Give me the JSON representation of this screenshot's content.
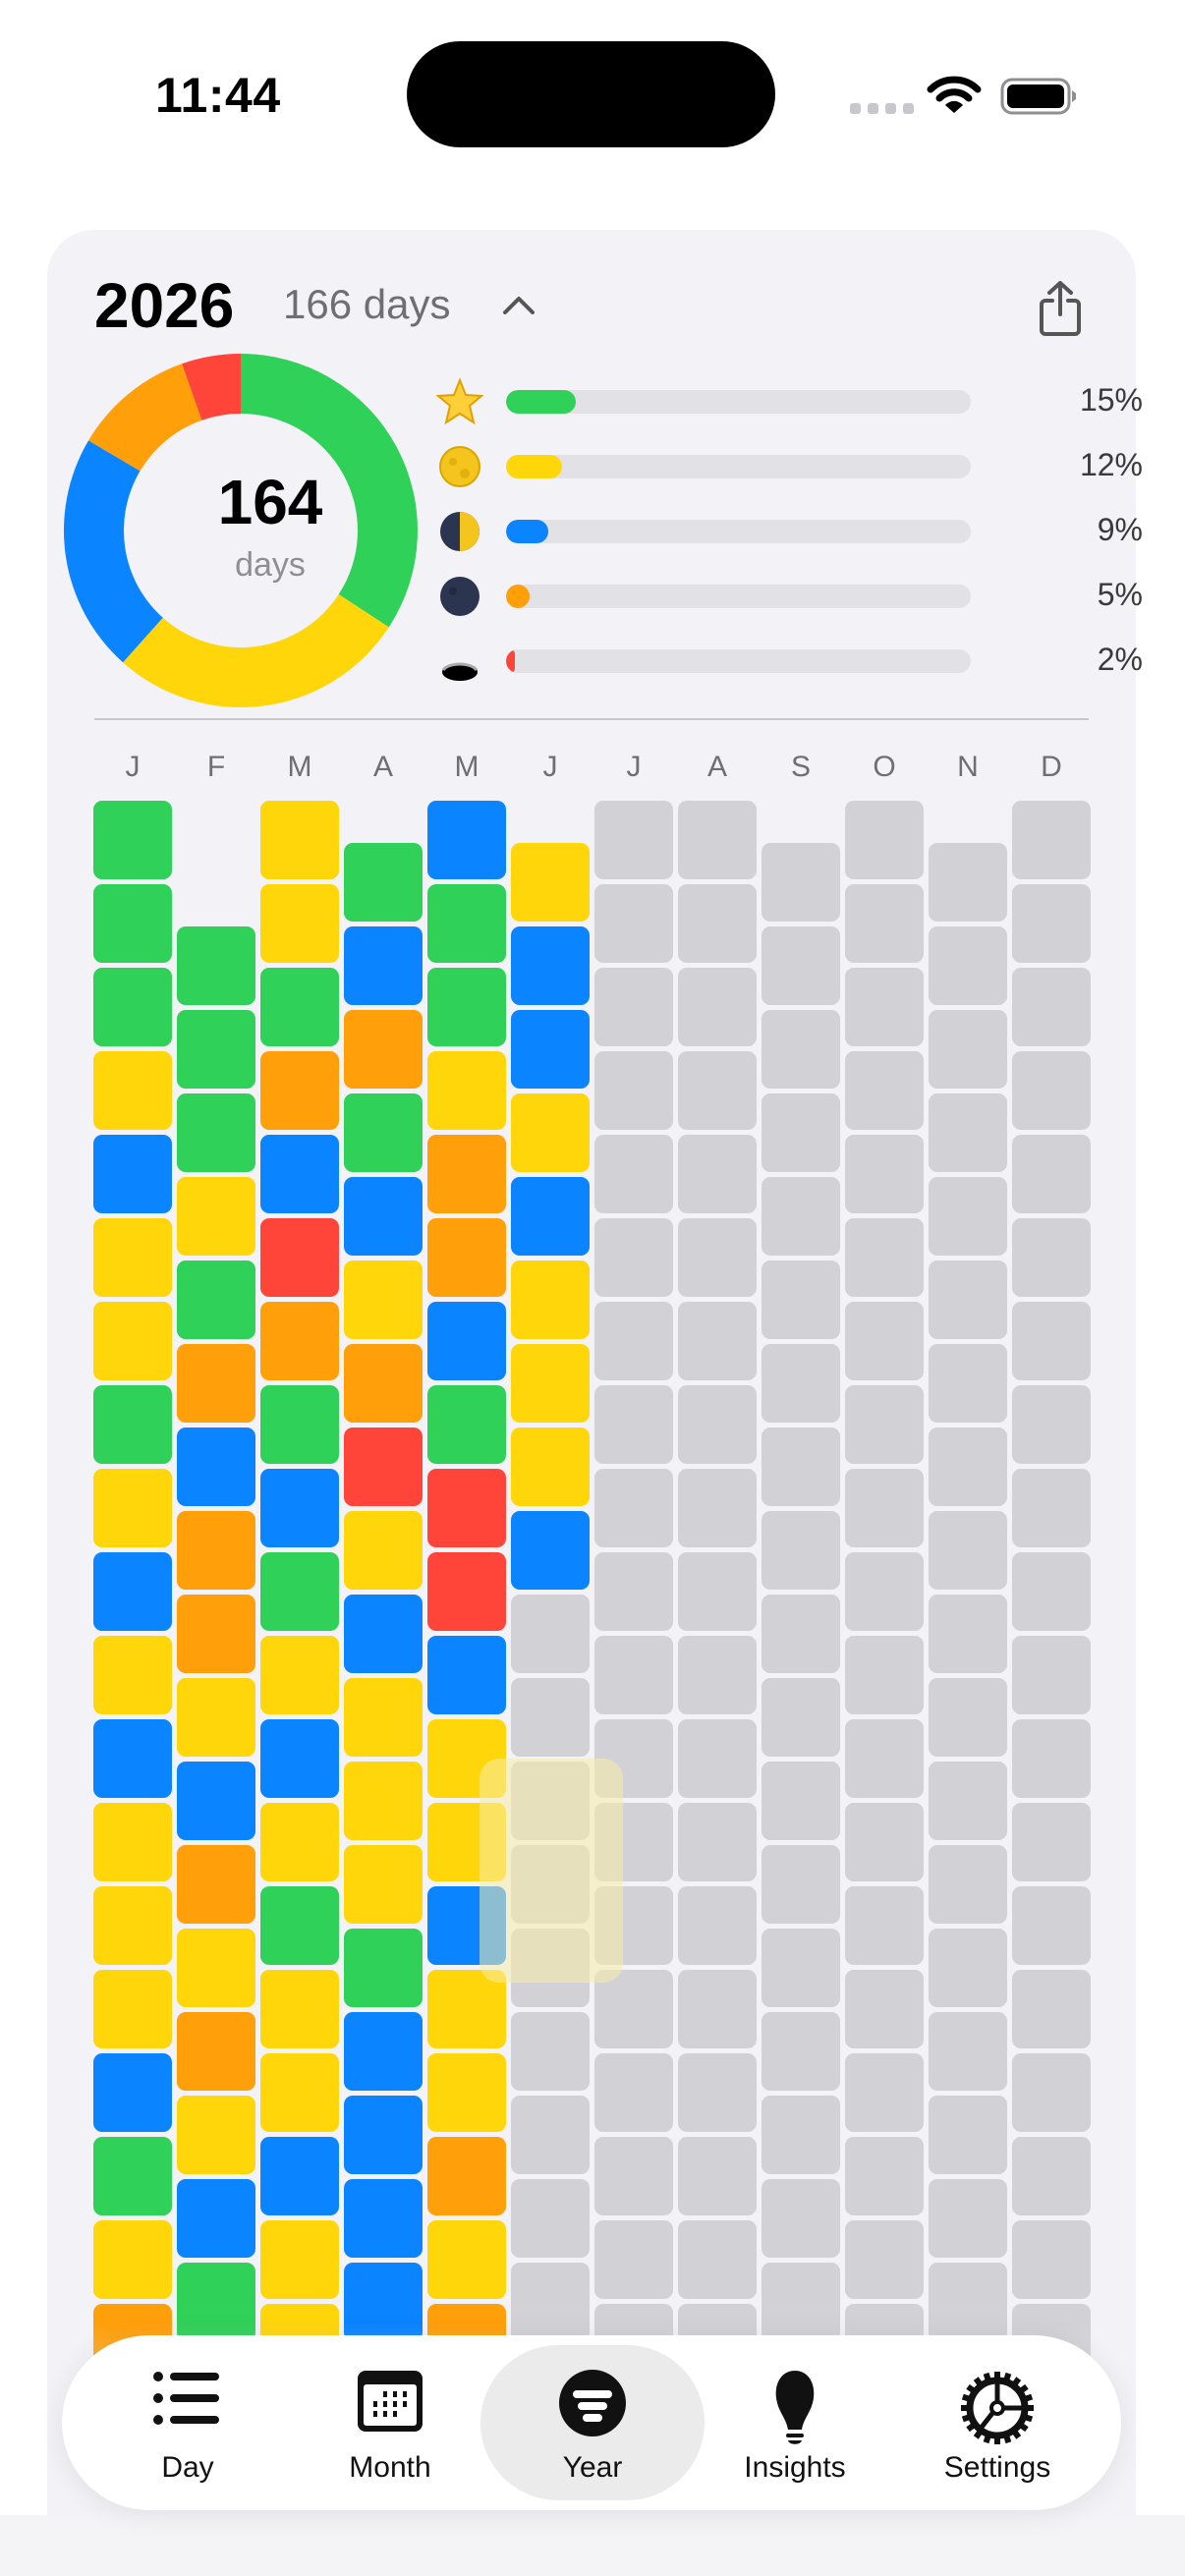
{
  "status_bar": {
    "time": "11:44",
    "signal": "no-service-dots",
    "wifi": "wifi-full",
    "battery": "battery-full"
  },
  "header": {
    "year": "2026",
    "days_label": "166 days",
    "collapse_icon": "chevron-up-icon",
    "share_icon": "share-icon"
  },
  "summary": {
    "total": "164",
    "total_label": "days",
    "donut": [
      {
        "mood": "green",
        "fraction": 0.342
      },
      {
        "mood": "yellow",
        "fraction": 0.274
      },
      {
        "mood": "blue",
        "fraction": 0.219
      },
      {
        "mood": "orange",
        "fraction": 0.111
      },
      {
        "mood": "red",
        "fraction": 0.054
      }
    ],
    "legend": [
      {
        "icon": "star",
        "mood": "green",
        "percent": 15,
        "label": "15%"
      },
      {
        "icon": "full-moon",
        "mood": "yellow",
        "percent": 12,
        "label": "12%"
      },
      {
        "icon": "half-moon",
        "mood": "blue",
        "percent": 9,
        "label": "9%"
      },
      {
        "icon": "new-moon",
        "mood": "orange",
        "percent": 5,
        "label": "5%"
      },
      {
        "icon": "hole",
        "mood": "red",
        "percent": 2,
        "label": "2%"
      }
    ]
  },
  "colors": {
    "green": "#30d158",
    "yellow": "#ffd60a",
    "blue": "#0a84ff",
    "orange": "#ff9f0a",
    "red": "#ff453a",
    "empty": "#d1d1d6"
  },
  "months": [
    {
      "label": "J",
      "days": 31,
      "moods": "GGGYBYYGYBYBYYYBGYO"
    },
    {
      "label": "F",
      "days": 28,
      "moods": "GGGYGOBOOYBOYOYBG"
    },
    {
      "label": "M",
      "days": 31,
      "moods": "YYGOBROGBGYBYGYYBYY"
    },
    {
      "label": "A",
      "days": 30,
      "moods": "GBOGBYORYBYYYGBBBB"
    },
    {
      "label": "M",
      "days": 31,
      "moods": "BGGYOOBGRRBYYBYYOYO"
    },
    {
      "label": "J",
      "days": 30,
      "moods": "YBBYBYYYB"
    },
    {
      "label": "J",
      "days": 31,
      "moods": ""
    },
    {
      "label": "A",
      "days": 31,
      "moods": ""
    },
    {
      "label": "S",
      "days": 30,
      "moods": ""
    },
    {
      "label": "O",
      "days": 31,
      "moods": ""
    },
    {
      "label": "N",
      "days": 30,
      "moods": ""
    },
    {
      "label": "D",
      "days": 31,
      "moods": ""
    }
  ],
  "tabs": [
    {
      "label": "Day",
      "icon": "list-icon"
    },
    {
      "label": "Month",
      "icon": "calendar-icon"
    },
    {
      "label": "Year",
      "icon": "year-filter-icon",
      "selected": true
    },
    {
      "label": "Insights",
      "icon": "lightbulb-icon"
    },
    {
      "label": "Settings",
      "icon": "gear-icon"
    }
  ]
}
